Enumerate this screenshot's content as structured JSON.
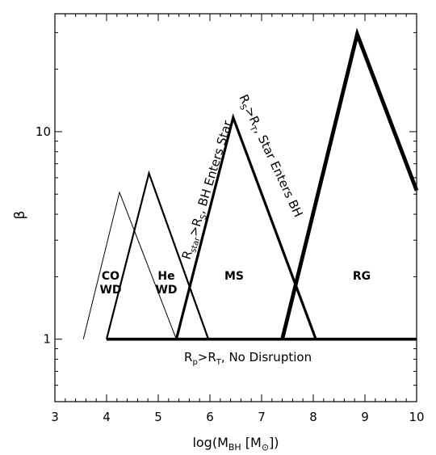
{
  "chart_data": {
    "type": "line",
    "title": "",
    "xlabel": "log(M_BH [M_⊙])",
    "ylabel": "β",
    "xlim": [
      3,
      10
    ],
    "ylim": [
      0.5,
      37
    ],
    "yscale": "log",
    "xticks": [
      "3",
      "4",
      "5",
      "6",
      "7",
      "8",
      "9",
      "10"
    ],
    "yticks": [
      {
        "value": 1,
        "label": "1"
      },
      {
        "value": 10,
        "label": "10"
      }
    ],
    "grid": false,
    "series": [
      {
        "name": "CO WD",
        "x": [
          3.55,
          4.25,
          5.35
        ],
        "y": [
          1.0,
          5.1,
          1.0
        ],
        "line_weight": "thin"
      },
      {
        "name": "He WD",
        "x": [
          4.0,
          4.82,
          5.97
        ],
        "y": [
          1.0,
          6.3,
          1.0
        ],
        "line_weight": "medium"
      },
      {
        "name": "MS",
        "x": [
          5.35,
          6.45,
          8.05
        ],
        "y": [
          1.0,
          11.7,
          1.0
        ],
        "line_weight": "thick"
      },
      {
        "name": "RG",
        "x": [
          7.4,
          8.85,
          10.0
        ],
        "y": [
          1.0,
          29.5,
          5.2
        ],
        "line_weight": "heaviest"
      }
    ],
    "floor_line": {
      "x": [
        4.0,
        10.0
      ],
      "y": [
        1.0,
        1.0
      ]
    },
    "annotations": {
      "co_line1": "CO",
      "co_line2": "WD",
      "he_line1": "He",
      "he_line2": "WD",
      "ms": "MS",
      "rg": "RG",
      "no_disruption": "R_p>R_T, No Disruption",
      "bh_enters_star": "R_star>R_S, BH Enters Star",
      "star_enters_bh": "R_S>R_T, Star Enters BH"
    }
  }
}
